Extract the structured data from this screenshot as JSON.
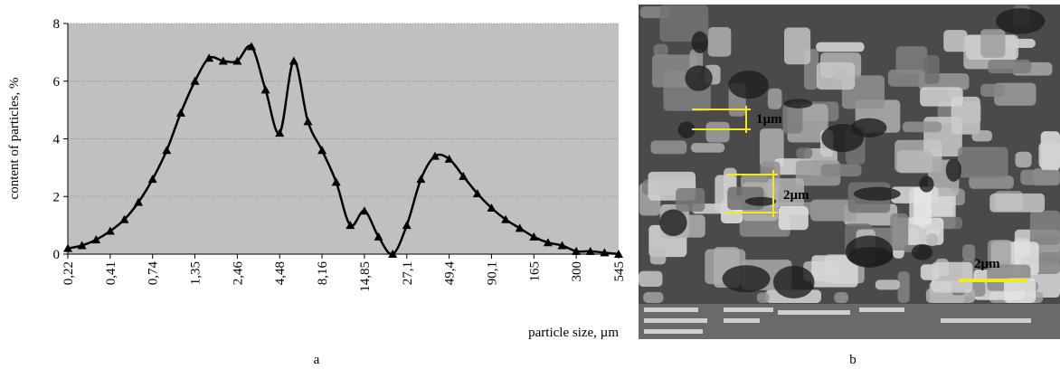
{
  "chart_data": {
    "type": "line",
    "y_label": "content of particles, %",
    "x_label": "particle size, µm",
    "categories": [
      "0,22",
      null,
      null,
      "0,41",
      null,
      null,
      "0,74",
      null,
      null,
      "1,35",
      null,
      null,
      "2,46",
      null,
      null,
      "4,48",
      null,
      null,
      "8,16",
      null,
      null,
      "14,85",
      null,
      null,
      "27,1",
      null,
      null,
      "49,4",
      null,
      null,
      "90,1",
      null,
      null,
      "165",
      null,
      null,
      "300",
      null,
      null,
      "545"
    ],
    "values": [
      0.2,
      0.3,
      0.5,
      0.8,
      1.2,
      1.8,
      2.6,
      3.6,
      4.9,
      6.0,
      6.8,
      6.7,
      6.7,
      7.2,
      5.7,
      4.2,
      6.7,
      4.6,
      3.6,
      2.5,
      1.0,
      1.5,
      0.6,
      0.0,
      1.0,
      2.6,
      3.4,
      3.3,
      2.7,
      2.1,
      1.6,
      1.2,
      0.9,
      0.6,
      0.4,
      0.3,
      0.1,
      0.1,
      0.05,
      0.0
    ],
    "color": "#000000",
    "ylim": [
      0,
      8
    ],
    "yticks": [
      0,
      2,
      4,
      6,
      8
    ],
    "grid": true
  },
  "image": {
    "scale_labels": [
      "1µm",
      "2µm",
      "2µm"
    ]
  },
  "captions": [
    "a",
    "b"
  ]
}
